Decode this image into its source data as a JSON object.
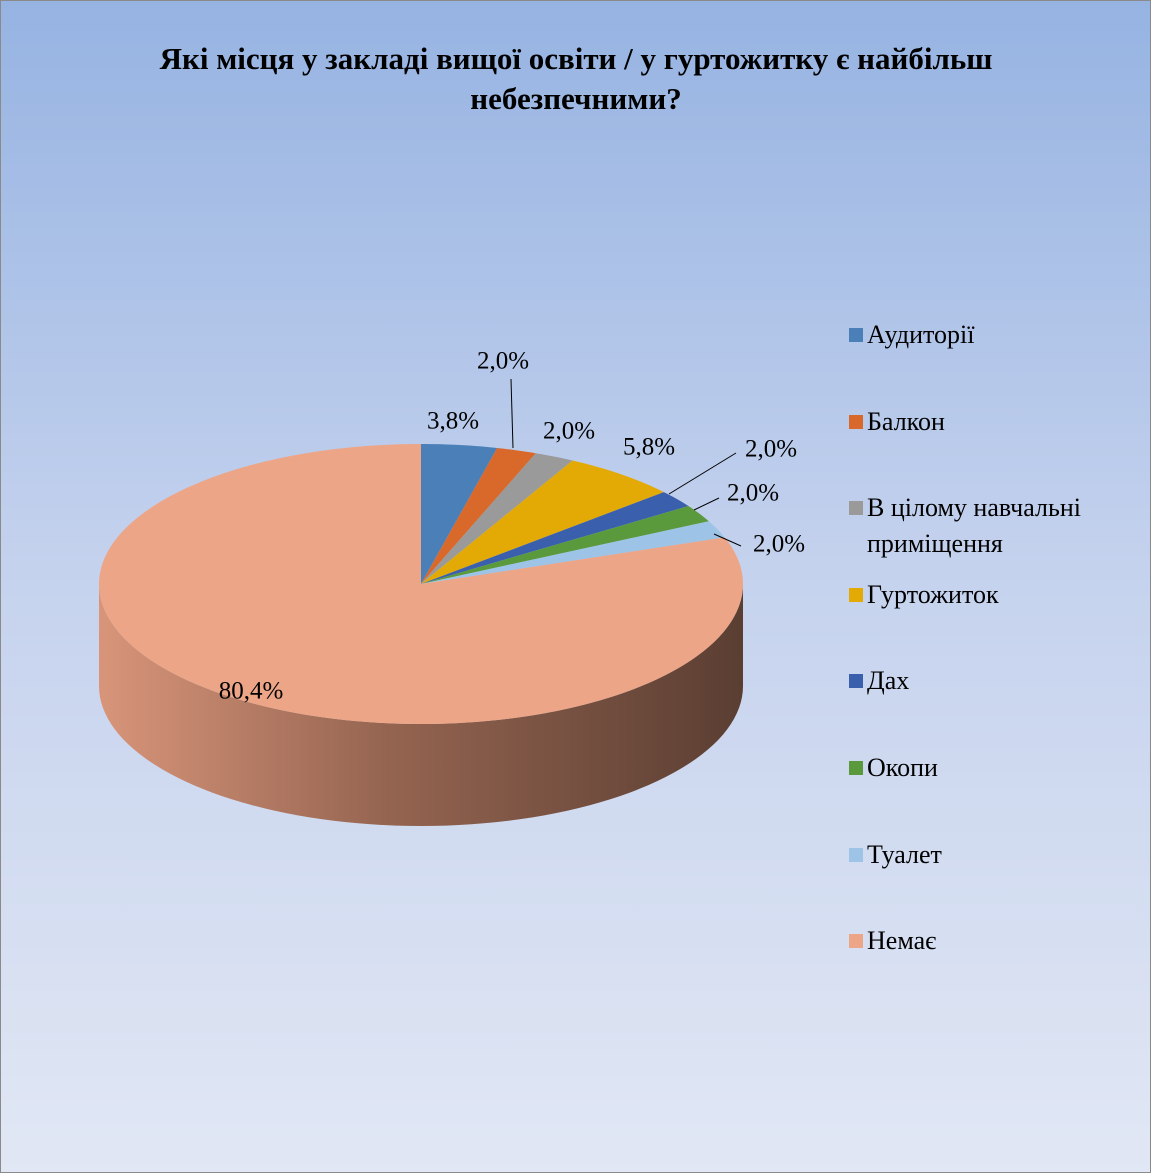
{
  "chart_data": {
    "type": "pie",
    "title": "Які місця у закладі вищої освіти / у гуртожитку є найбільш небезпечними?",
    "categories": [
      "Аудиторії",
      "Балкон",
      "В цілому навчальні приміщення",
      "Гуртожиток",
      "Дах",
      "Окопи",
      "Туалет",
      "Немає"
    ],
    "values": [
      3.8,
      2.0,
      2.0,
      5.8,
      2.0,
      2.0,
      2.0,
      80.4
    ],
    "value_labels": [
      "3,8%",
      "2,0%",
      "2,0%",
      "5,8%",
      "2,0%",
      "2,0%",
      "2,0%",
      "80,4%"
    ],
    "colors": [
      "#4a7fb8",
      "#d9692a",
      "#9a9a9a",
      "#e3aa06",
      "#3a5fad",
      "#5a9a3c",
      "#9dc3e6",
      "#eda587"
    ],
    "legend": "right"
  }
}
